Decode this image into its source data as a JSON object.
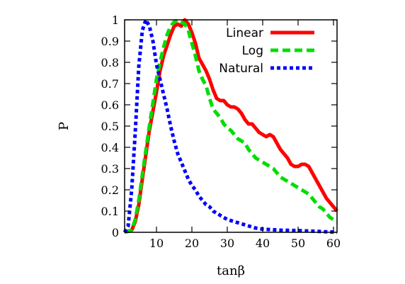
{
  "chart_data": {
    "type": "line",
    "xlabel": "tanβ",
    "ylabel": "P",
    "xlim": [
      1,
      61
    ],
    "ylim": [
      0,
      1
    ],
    "x_ticks": [
      10,
      20,
      30,
      40,
      50,
      60
    ],
    "y_ticks": [
      0,
      0.1,
      0.2,
      0.3,
      0.4,
      0.5,
      0.6,
      0.7,
      0.8,
      0.9,
      1
    ],
    "y_tick_labels": [
      "0",
      "0.1",
      "0.2",
      "0.3",
      "0.4",
      "0.5",
      "0.6",
      "0.7",
      "0.8",
      "0.9",
      "1"
    ],
    "grid": false,
    "legend_position": "top-right",
    "series": [
      {
        "name": "Linear",
        "color": "#ff0000",
        "dash": "solid",
        "points": [
          [
            1,
            0
          ],
          [
            3,
            0.01
          ],
          [
            4,
            0.05
          ],
          [
            5,
            0.13
          ],
          [
            6,
            0.25
          ],
          [
            8,
            0.48
          ],
          [
            10,
            0.66
          ],
          [
            11,
            0.76
          ],
          [
            12,
            0.83
          ],
          [
            14,
            0.93
          ],
          [
            15,
            0.97
          ],
          [
            16,
            0.98
          ],
          [
            17,
            0.97
          ],
          [
            18,
            1.0
          ],
          [
            19,
            0.98
          ],
          [
            20,
            0.94
          ],
          [
            21,
            0.89
          ],
          [
            22,
            0.82
          ],
          [
            23,
            0.79
          ],
          [
            24,
            0.76
          ],
          [
            25,
            0.72
          ],
          [
            26,
            0.67
          ],
          [
            27,
            0.63
          ],
          [
            28,
            0.62
          ],
          [
            29,
            0.62
          ],
          [
            30,
            0.6
          ],
          [
            31,
            0.59
          ],
          [
            32,
            0.59
          ],
          [
            33,
            0.58
          ],
          [
            34,
            0.56
          ],
          [
            35,
            0.53
          ],
          [
            36,
            0.51
          ],
          [
            37,
            0.51
          ],
          [
            38,
            0.49
          ],
          [
            39,
            0.47
          ],
          [
            40,
            0.46
          ],
          [
            41,
            0.45
          ],
          [
            42,
            0.46
          ],
          [
            43,
            0.45
          ],
          [
            44,
            0.42
          ],
          [
            45,
            0.39
          ],
          [
            46,
            0.37
          ],
          [
            47,
            0.35
          ],
          [
            48,
            0.32
          ],
          [
            49,
            0.31
          ],
          [
            50,
            0.31
          ],
          [
            51,
            0.32
          ],
          [
            52,
            0.32
          ],
          [
            53,
            0.31
          ],
          [
            54,
            0.28
          ],
          [
            55,
            0.25
          ],
          [
            56,
            0.22
          ],
          [
            57,
            0.19
          ],
          [
            58,
            0.16
          ],
          [
            59,
            0.14
          ],
          [
            60,
            0.12
          ],
          [
            61,
            0.1
          ]
        ]
      },
      {
        "name": "Log",
        "color": "#00dd00",
        "dash": "dashed",
        "points": [
          [
            1,
            0
          ],
          [
            3,
            0.01
          ],
          [
            4,
            0.06
          ],
          [
            5,
            0.15
          ],
          [
            6,
            0.27
          ],
          [
            8,
            0.5
          ],
          [
            10,
            0.72
          ],
          [
            11,
            0.8
          ],
          [
            12,
            0.87
          ],
          [
            13,
            0.93
          ],
          [
            14,
            0.97
          ],
          [
            15,
            0.99
          ],
          [
            16,
            1.0
          ],
          [
            17,
            0.99
          ],
          [
            18,
            0.98
          ],
          [
            19,
            0.95
          ],
          [
            20,
            0.89
          ],
          [
            21,
            0.83
          ],
          [
            22,
            0.76
          ],
          [
            23,
            0.72
          ],
          [
            24,
            0.69
          ],
          [
            25,
            0.63
          ],
          [
            26,
            0.58
          ],
          [
            27,
            0.56
          ],
          [
            28,
            0.54
          ],
          [
            29,
            0.51
          ],
          [
            30,
            0.49
          ],
          [
            31,
            0.48
          ],
          [
            32,
            0.46
          ],
          [
            33,
            0.44
          ],
          [
            34,
            0.43
          ],
          [
            35,
            0.42
          ],
          [
            36,
            0.39
          ],
          [
            37,
            0.37
          ],
          [
            38,
            0.35
          ],
          [
            39,
            0.34
          ],
          [
            40,
            0.33
          ],
          [
            41,
            0.32
          ],
          [
            42,
            0.31
          ],
          [
            43,
            0.3
          ],
          [
            44,
            0.28
          ],
          [
            45,
            0.26
          ],
          [
            46,
            0.25
          ],
          [
            47,
            0.24
          ],
          [
            48,
            0.23
          ],
          [
            49,
            0.22
          ],
          [
            50,
            0.21
          ],
          [
            51,
            0.2
          ],
          [
            52,
            0.19
          ],
          [
            53,
            0.18
          ],
          [
            54,
            0.16
          ],
          [
            55,
            0.14
          ],
          [
            56,
            0.12
          ],
          [
            57,
            0.11
          ],
          [
            58,
            0.09
          ],
          [
            59,
            0.07
          ],
          [
            60,
            0.06
          ],
          [
            61,
            0.05
          ]
        ]
      },
      {
        "name": "Natural",
        "color": "#0000ff",
        "dash": "dotted",
        "points": [
          [
            1,
            0
          ],
          [
            2,
            0.03
          ],
          [
            3,
            0.2
          ],
          [
            4,
            0.47
          ],
          [
            5,
            0.78
          ],
          [
            6,
            0.95
          ],
          [
            7,
            1.0
          ],
          [
            8,
            0.97
          ],
          [
            9,
            0.9
          ],
          [
            10,
            0.79
          ],
          [
            11,
            0.72
          ],
          [
            12,
            0.65
          ],
          [
            13,
            0.58
          ],
          [
            14,
            0.5
          ],
          [
            15,
            0.43
          ],
          [
            16,
            0.37
          ],
          [
            17,
            0.33
          ],
          [
            18,
            0.29
          ],
          [
            19,
            0.25
          ],
          [
            20,
            0.22
          ],
          [
            21,
            0.2
          ],
          [
            22,
            0.17
          ],
          [
            23,
            0.15
          ],
          [
            24,
            0.13
          ],
          [
            25,
            0.12
          ],
          [
            26,
            0.1
          ],
          [
            27,
            0.09
          ],
          [
            28,
            0.08
          ],
          [
            30,
            0.06
          ],
          [
            32,
            0.05
          ],
          [
            34,
            0.04
          ],
          [
            36,
            0.03
          ],
          [
            38,
            0.02
          ],
          [
            40,
            0.015
          ],
          [
            45,
            0.01
          ],
          [
            50,
            0.008
          ],
          [
            55,
            0.005
          ],
          [
            61,
            0.0
          ]
        ]
      }
    ]
  }
}
